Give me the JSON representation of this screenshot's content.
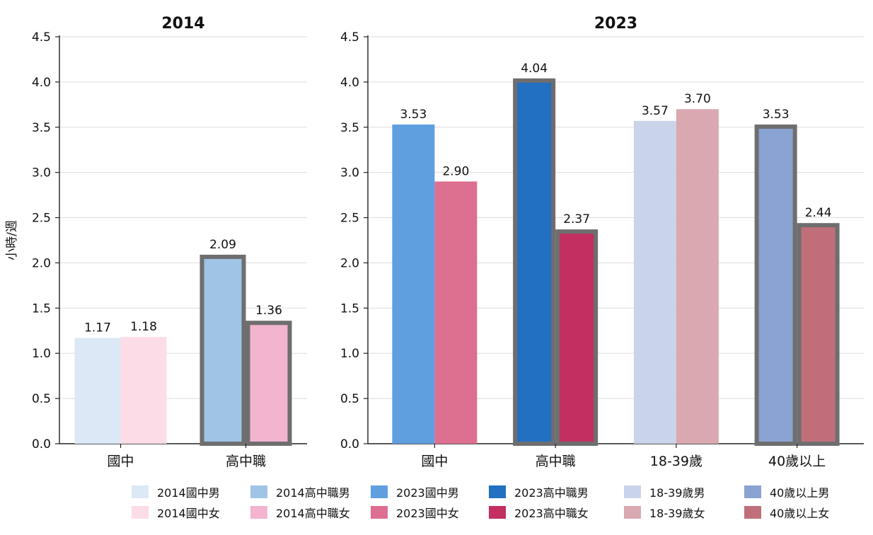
{
  "y_axis_label": "小時/週",
  "colors": {
    "highlight_border": "#6e6e6e",
    "axis": "#222222",
    "grid": "#dddddd"
  },
  "chart_data": [
    {
      "type": "bar",
      "title": "2014",
      "ylabel": "小時/週",
      "ylim": [
        0,
        4.5
      ],
      "yticks": [
        "0.0",
        "0.5",
        "1.0",
        "1.5",
        "2.0",
        "2.5",
        "3.0",
        "3.5",
        "4.0",
        "4.5"
      ],
      "grid": true,
      "categories": [
        "國中",
        "高中職"
      ],
      "bars": [
        {
          "category": "國中",
          "legend": "2014國中男",
          "value": 1.17,
          "label": "1.17",
          "color": "#dce8f5",
          "highlight": false
        },
        {
          "category": "國中",
          "legend": "2014國中女",
          "value": 1.18,
          "label": "1.18",
          "color": "#fbdce7",
          "highlight": false
        },
        {
          "category": "高中職",
          "legend": "2014高中職男",
          "value": 2.09,
          "label": "2.09",
          "color": "#9fc4e6",
          "highlight": true
        },
        {
          "category": "高中職",
          "legend": "2014高中職女",
          "value": 1.36,
          "label": "1.36",
          "color": "#f2b4cf",
          "highlight": true
        }
      ]
    },
    {
      "type": "bar",
      "title": "2023",
      "ylabel": "",
      "ylim": [
        0,
        4.5
      ],
      "yticks": [
        "0.0",
        "0.5",
        "1.0",
        "1.5",
        "2.0",
        "2.5",
        "3.0",
        "3.5",
        "4.0",
        "4.5"
      ],
      "grid": true,
      "categories": [
        "國中",
        "高中職",
        "18-39歲",
        "40歲以上"
      ],
      "bars": [
        {
          "category": "國中",
          "legend": "2023國中男",
          "value": 3.53,
          "label": "3.53",
          "color": "#5f9fe0",
          "highlight": false
        },
        {
          "category": "國中",
          "legend": "2023國中女",
          "value": 2.9,
          "label": "2.90",
          "color": "#dd6f90",
          "highlight": false
        },
        {
          "category": "高中職",
          "legend": "2023高中職男",
          "value": 4.04,
          "label": "4.04",
          "color": "#2170c1",
          "highlight": true
        },
        {
          "category": "高中職",
          "legend": "2023高中職女",
          "value": 2.37,
          "label": "2.37",
          "color": "#c32f60",
          "highlight": true
        },
        {
          "category": "18-39歲",
          "legend": "18-39歲男",
          "value": 3.57,
          "label": "3.57",
          "color": "#c9d3ea",
          "highlight": false
        },
        {
          "category": "18-39歲",
          "legend": "18-39歲女",
          "value": 3.7,
          "label": "3.70",
          "color": "#d9a8b0",
          "highlight": false
        },
        {
          "category": "40歲以上",
          "legend": "40歲以上男",
          "value": 3.53,
          "label": "3.53",
          "color": "#8aa3d2",
          "highlight": true
        },
        {
          "category": "40歲以上",
          "legend": "40歲以上女",
          "value": 2.44,
          "label": "2.44",
          "color": "#c06f7a",
          "highlight": true
        }
      ]
    }
  ],
  "legend": {
    "placement": "bottom",
    "items": [
      {
        "label": "2014國中男",
        "color": "#dce8f5"
      },
      {
        "label": "2014國中女",
        "color": "#fbdce7"
      },
      {
        "label": "2014高中職男",
        "color": "#9fc4e6"
      },
      {
        "label": "2014高中職女",
        "color": "#f2b4cf"
      },
      {
        "label": "2023國中男",
        "color": "#5f9fe0"
      },
      {
        "label": "2023國中女",
        "color": "#dd6f90"
      },
      {
        "label": "2023高中職男",
        "color": "#2170c1"
      },
      {
        "label": "2023高中職女",
        "color": "#c32f60"
      },
      {
        "label": "18-39歲男",
        "color": "#c9d3ea"
      },
      {
        "label": "18-39歲女",
        "color": "#d9a8b0"
      },
      {
        "label": "40歲以上男",
        "color": "#8aa3d2"
      },
      {
        "label": "40歲以上女",
        "color": "#c06f7a"
      }
    ]
  }
}
